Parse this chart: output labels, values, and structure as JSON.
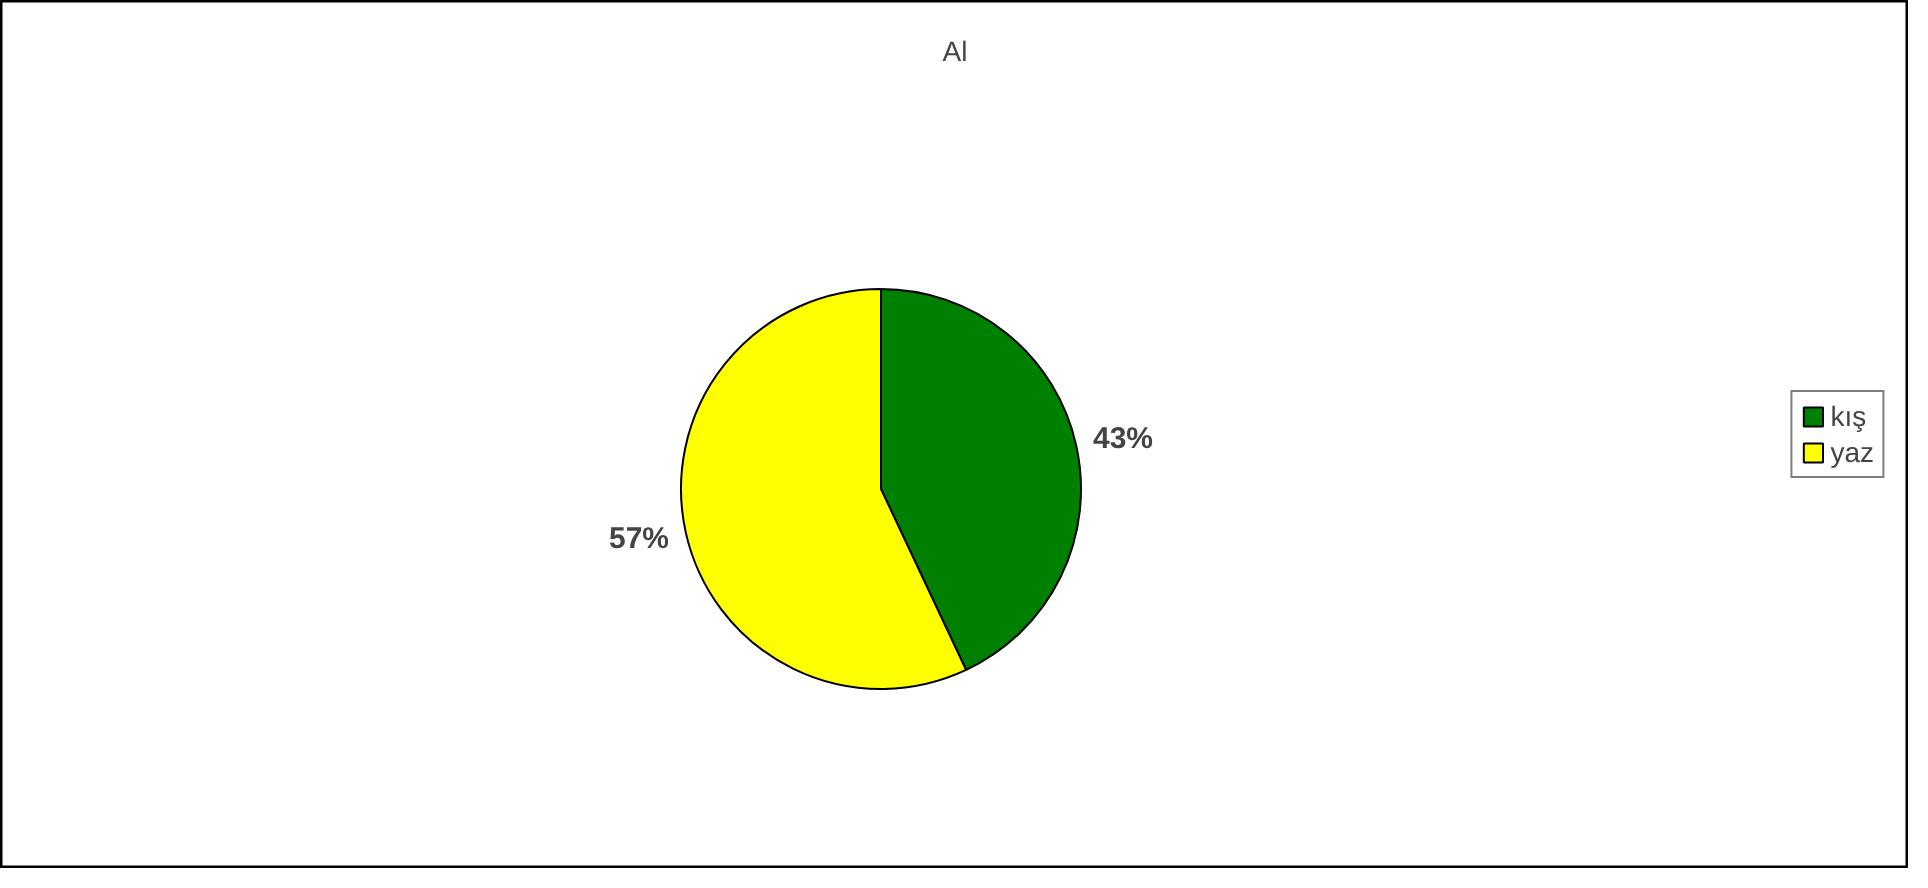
{
  "chart_data": {
    "type": "pie",
    "title": "Al",
    "categories": [
      "kış",
      "yaz"
    ],
    "values": [
      43,
      57
    ],
    "colors": [
      "#008000",
      "#ffff00"
    ],
    "value_labels": [
      "43%",
      "57%"
    ],
    "legend": "right"
  }
}
